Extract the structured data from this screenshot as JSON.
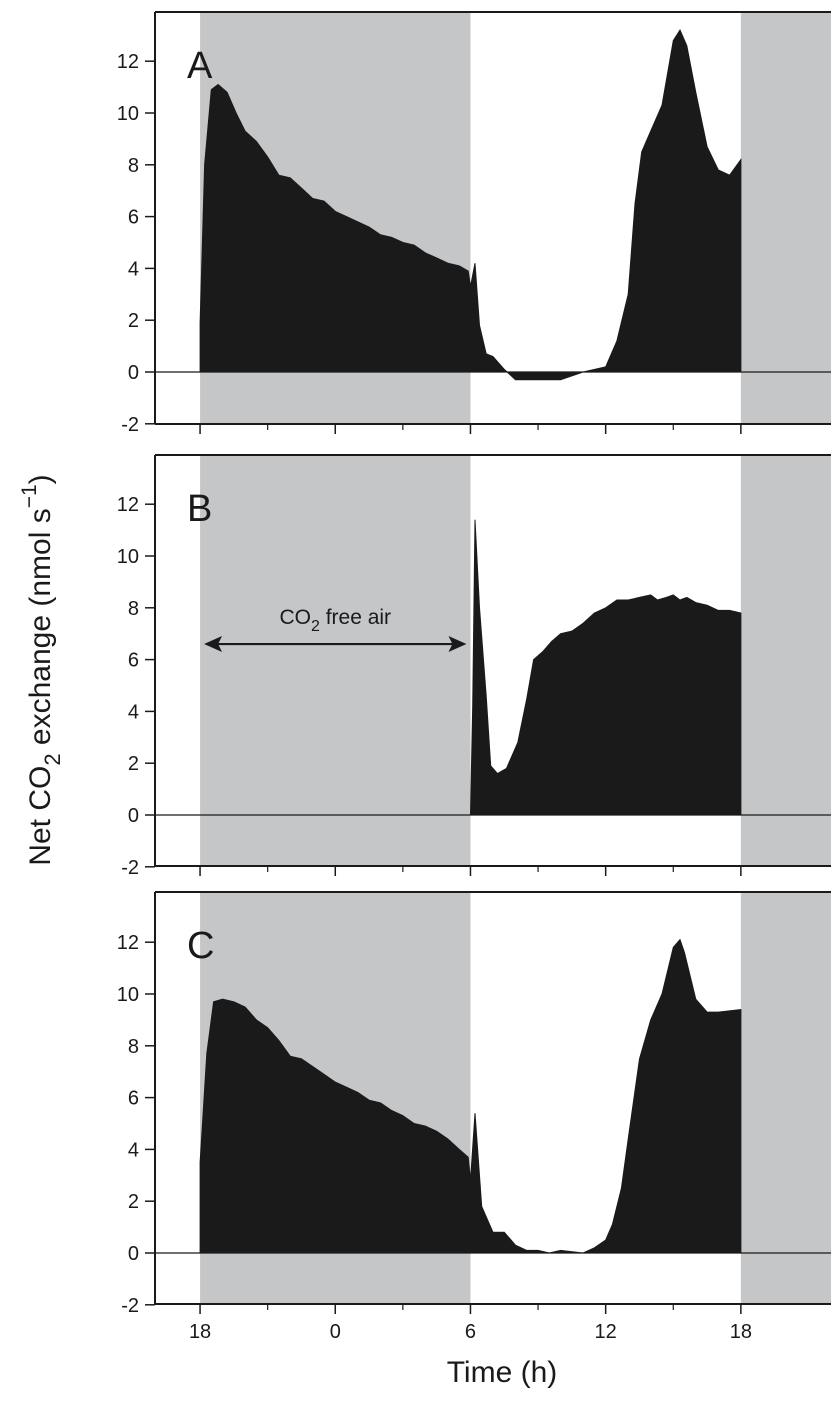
{
  "chart_data": [
    {
      "type": "area",
      "panel_label": "A",
      "ylim": [
        -2,
        14
      ],
      "yticks": [
        "-2",
        "0",
        "2",
        "4",
        "6",
        "8",
        "10",
        "12"
      ],
      "xlim": [
        -8,
        22
      ],
      "dark_periods": [
        [
          -6,
          6
        ],
        [
          18,
          22
        ]
      ],
      "fill_color": "#1a1a1a",
      "dark_color": "#c5c6c8",
      "series": [
        {
          "x": [
            -6,
            -5.8,
            -5.5,
            -5.2,
            -4.8,
            -4.4,
            -4,
            -3.5,
            -3,
            -2.5,
            -2,
            -1.5,
            -1,
            -0.5,
            0,
            0.5,
            1,
            1.5,
            2,
            2.5,
            3,
            3.5,
            4,
            4.5,
            5,
            5.5,
            5.9,
            6,
            6.2,
            6.4,
            6.7,
            7,
            7.5,
            8,
            9,
            10,
            11,
            12,
            12.5,
            13,
            13.3,
            13.6,
            14,
            14.5,
            15,
            15.3,
            15.6,
            16,
            16.5,
            17,
            17.5,
            18
          ],
          "y": [
            1.9,
            8,
            10.9,
            11.1,
            10.8,
            10,
            9.3,
            8.9,
            8.3,
            7.6,
            7.5,
            7.1,
            6.7,
            6.6,
            6.2,
            6,
            5.8,
            5.6,
            5.3,
            5.2,
            5,
            4.9,
            4.6,
            4.4,
            4.2,
            4.1,
            3.9,
            3.3,
            4.2,
            1.8,
            0.7,
            0.6,
            0.1,
            -0.3,
            -0.3,
            -0.3,
            0,
            0.2,
            1.2,
            3,
            6.5,
            8.5,
            9.3,
            10.3,
            12.8,
            13.2,
            12.6,
            10.8,
            8.7,
            7.8,
            7.6,
            8.2
          ]
        }
      ]
    },
    {
      "type": "area",
      "panel_label": "B",
      "ylim": [
        -2,
        14
      ],
      "yticks": [
        "-2",
        "0",
        "2",
        "4",
        "6",
        "8",
        "10",
        "12"
      ],
      "xlim": [
        -8,
        22
      ],
      "dark_periods": [
        [
          -6,
          6
        ],
        [
          18,
          22
        ]
      ],
      "fill_color": "#1a1a1a",
      "dark_color": "#c5c6c8",
      "annotation": {
        "text_main": "CO",
        "text_sub": "2",
        "text_rest": " free air",
        "from_x": -6,
        "to_x": 6,
        "y": 6.6
      },
      "series": [
        {
          "x": [
            6,
            6.1,
            6.2,
            6.4,
            6.7,
            6.9,
            7.2,
            7.6,
            8.1,
            8.5,
            8.8,
            9.2,
            9.6,
            10,
            10.5,
            11,
            11.5,
            12,
            12.5,
            13,
            13.5,
            14,
            14.3,
            14.7,
            15,
            15.3,
            15.6,
            16,
            16.5,
            17,
            17.5,
            18
          ],
          "y": [
            0,
            4.2,
            11.4,
            8,
            4.6,
            1.9,
            1.6,
            1.8,
            2.8,
            4.5,
            6,
            6.3,
            6.7,
            7,
            7.1,
            7.4,
            7.8,
            8,
            8.3,
            8.3,
            8.4,
            8.5,
            8.3,
            8.4,
            8.5,
            8.3,
            8.4,
            8.2,
            8.1,
            7.9,
            7.9,
            7.8
          ]
        }
      ]
    },
    {
      "type": "area",
      "panel_label": "C",
      "ylim": [
        -2,
        14
      ],
      "yticks": [
        "-2",
        "0",
        "2",
        "4",
        "6",
        "8",
        "10",
        "12"
      ],
      "xlim": [
        -8,
        22
      ],
      "xticks": [
        "18",
        "0",
        "6",
        "12",
        "18"
      ],
      "dark_periods": [
        [
          -6,
          6
        ],
        [
          18,
          22
        ]
      ],
      "fill_color": "#1a1a1a",
      "dark_color": "#c5c6c8",
      "series": [
        {
          "x": [
            -6,
            -5.7,
            -5.4,
            -5,
            -4.5,
            -4,
            -3.5,
            -3,
            -2.5,
            -2,
            -1.5,
            -1,
            -0.5,
            0,
            0.5,
            1,
            1.5,
            2,
            2.5,
            3,
            3.5,
            4,
            4.5,
            5,
            5.5,
            5.9,
            6,
            6.2,
            6.5,
            7,
            7.5,
            8,
            8.5,
            9,
            9.5,
            10,
            11,
            11.5,
            12,
            12.3,
            12.7,
            13,
            13.5,
            14,
            14.5,
            15,
            15.3,
            15.5,
            16,
            16.5,
            17,
            18
          ],
          "y": [
            3.5,
            7.7,
            9.7,
            9.8,
            9.7,
            9.5,
            9,
            8.7,
            8.2,
            7.6,
            7.5,
            7.2,
            6.9,
            6.6,
            6.4,
            6.2,
            5.9,
            5.8,
            5.5,
            5.3,
            5,
            4.9,
            4.7,
            4.4,
            4,
            3.7,
            2.8,
            5.4,
            1.8,
            0.8,
            0.8,
            0.3,
            0.1,
            0.1,
            0,
            0.1,
            0,
            0.2,
            0.5,
            1.1,
            2.5,
            4.4,
            7.5,
            9,
            10,
            11.8,
            12.1,
            11.6,
            9.8,
            9.3,
            9.3,
            9.4
          ]
        }
      ]
    }
  ],
  "figure": {
    "ylabel": {
      "prefix": "Net CO",
      "sub": "2",
      "middle": " exchange (nmol s",
      "sup": "−1",
      "suffix": ")"
    },
    "xlabel": "Time (h)"
  }
}
